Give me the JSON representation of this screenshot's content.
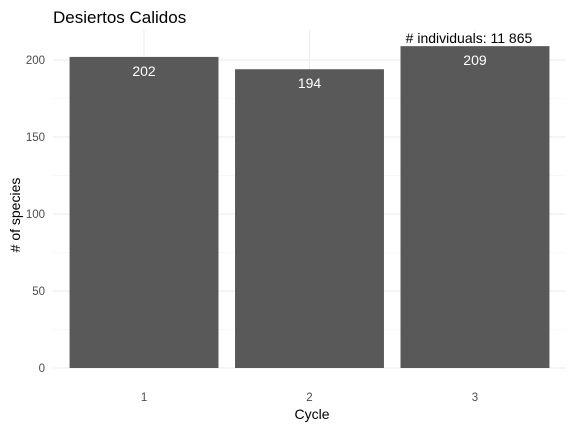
{
  "chart_data": {
    "type": "bar",
    "title": "Desiertos Calidos",
    "xlabel": "Cycle",
    "ylabel": "# of species",
    "categories": [
      "1",
      "2",
      "3"
    ],
    "values": [
      202,
      194,
      209
    ],
    "data_labels": [
      "202",
      "194",
      "209"
    ],
    "yticks": [
      0,
      50,
      100,
      150,
      200
    ],
    "yticks_labels": [
      "0",
      "50",
      "100",
      "150",
      "200"
    ],
    "ylim": [
      0,
      220
    ],
    "grid": true,
    "bar_color": "#595959",
    "annotation": {
      "text": "# individuals: 11 865",
      "category": "3"
    }
  }
}
